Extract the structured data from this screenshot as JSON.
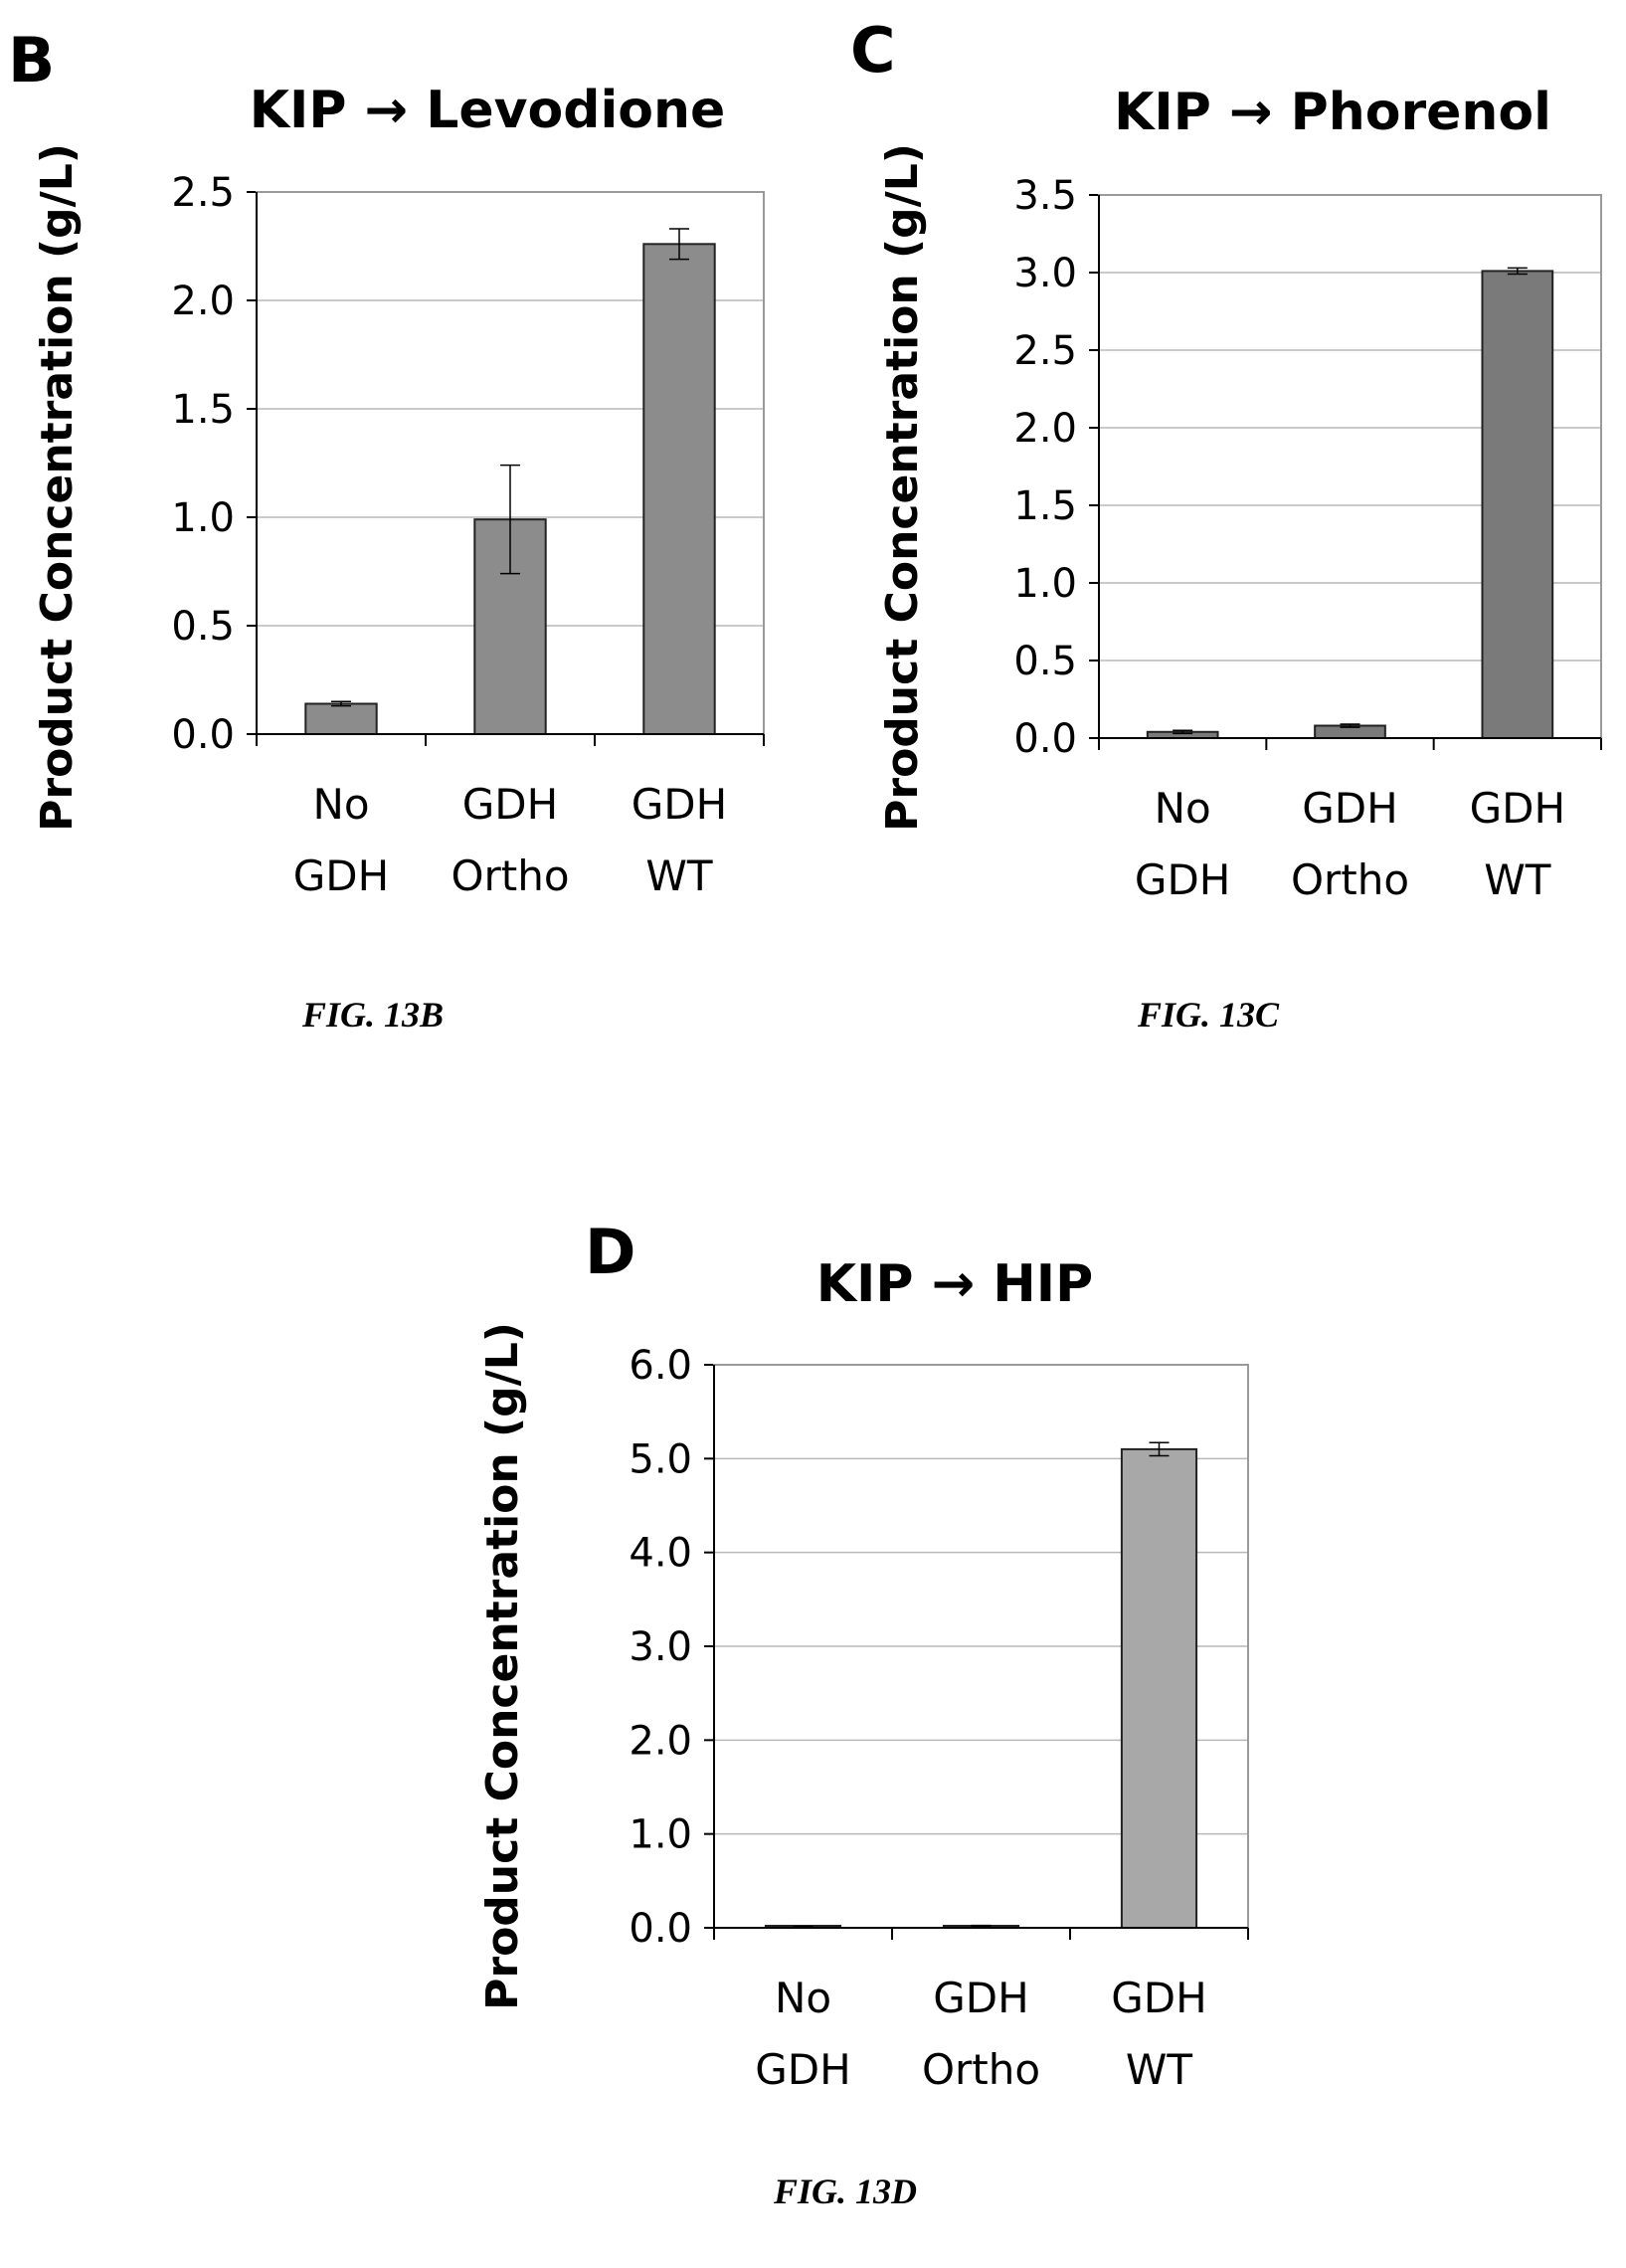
{
  "chart_data": [
    {
      "type": "bar",
      "panel_letter": "B",
      "title": "KIP → Levodione",
      "ylabel": "Product Concentration (g/L)",
      "xlabel": "",
      "categories": [
        [
          "No",
          "GDH"
        ],
        [
          "GDH",
          "Ortho"
        ],
        [
          "GDH",
          "WT"
        ]
      ],
      "values": [
        0.14,
        0.99,
        2.26
      ],
      "errors": [
        0.01,
        0.25,
        0.07
      ],
      "ylim": [
        0,
        2.5
      ],
      "yticks": [
        "0.0",
        "0.5",
        "1.0",
        "1.5",
        "2.0",
        "2.5"
      ],
      "grid": true,
      "bar_color": "#8c8c8c",
      "caption": "FIG. 13B"
    },
    {
      "type": "bar",
      "panel_letter": "C",
      "title": "KIP → Phorenol",
      "ylabel": "Product Concentration (g/L)",
      "xlabel": "",
      "categories": [
        [
          "No",
          "GDH"
        ],
        [
          "GDH",
          "Ortho"
        ],
        [
          "GDH",
          "WT"
        ]
      ],
      "values": [
        0.04,
        0.08,
        3.01
      ],
      "errors": [
        0.01,
        0.01,
        0.02
      ],
      "ylim": [
        0,
        3.5
      ],
      "yticks": [
        "0.0",
        "0.5",
        "1.0",
        "1.5",
        "2.0",
        "2.5",
        "3.0",
        "3.5"
      ],
      "grid": true,
      "bar_color": "#7a7a7a",
      "caption": "FIG. 13C"
    },
    {
      "type": "bar",
      "panel_letter": "D",
      "title": "KIP → HIP",
      "ylabel": "Product Concentration (g/L)",
      "xlabel": "",
      "categories": [
        [
          "No",
          "GDH"
        ],
        [
          "GDH",
          "Ortho"
        ],
        [
          "GDH",
          "WT"
        ]
      ],
      "values": [
        0.01,
        0.02,
        5.1
      ],
      "errors": [
        0.005,
        0.005,
        0.07
      ],
      "ylim": [
        0,
        6
      ],
      "yticks": [
        "0.0",
        "1.0",
        "2.0",
        "3.0",
        "4.0",
        "5.0",
        "6.0"
      ],
      "grid": true,
      "bar_color": "#a8a8a8",
      "caption": "FIG. 13D"
    }
  ]
}
